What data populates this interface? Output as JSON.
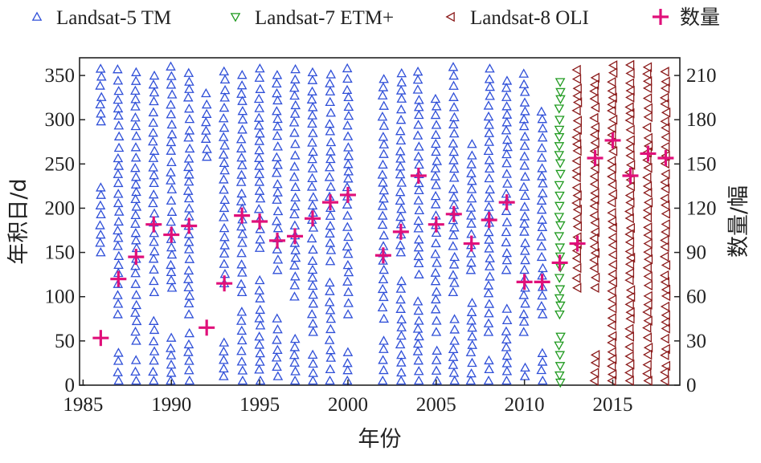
{
  "chart_data": {
    "type": "scatter",
    "xlabel": "年份",
    "ylabel": "年积日/d",
    "y2label": "数量/幅",
    "xlim": [
      1984.8,
      2018.8
    ],
    "ylim": [
      0,
      370
    ],
    "y2lim": [
      0,
      222
    ],
    "xticks": [
      1985,
      1990,
      1995,
      2000,
      2005,
      2010,
      2015
    ],
    "yticks": [
      0,
      50,
      100,
      150,
      200,
      250,
      300,
      350
    ],
    "y2ticks": [
      0,
      30,
      60,
      90,
      120,
      150,
      180,
      210
    ],
    "legend_position": "top",
    "legend": [
      {
        "label": "Landsat-5 TM",
        "marker": "triangle-up",
        "color": "#2f4fd8"
      },
      {
        "label": "Landsat-7 ETM+",
        "marker": "triangle-down",
        "color": "#1f9a1f"
      },
      {
        "label": "Landsat-8 OLI",
        "marker": "triangle-left",
        "color": "#8b1a1a"
      },
      {
        "label": "数量",
        "marker": "plus",
        "color": "#e0107a"
      }
    ],
    "series": [
      {
        "name": "Landsat-5 TM",
        "axis": "left",
        "marker": "triangle-up",
        "color": "#2f4fd8",
        "columns": [
          {
            "year": 1986,
            "ranges": [
              [
                150,
                225
              ],
              [
                298,
                362
              ]
            ]
          },
          {
            "year": 1987,
            "ranges": [
              [
                5,
                40
              ],
              [
                80,
                360
              ]
            ]
          },
          {
            "year": 1988,
            "ranges": [
              [
                5,
                30
              ],
              [
                50,
                362
              ]
            ]
          },
          {
            "year": 1989,
            "ranges": [
              [
                5,
                75
              ],
              [
                105,
                355
              ]
            ]
          },
          {
            "year": 1990,
            "ranges": [
              [
                5,
                60
              ],
              [
                110,
                362
              ]
            ]
          },
          {
            "year": 1991,
            "ranges": [
              [
                5,
                60
              ],
              [
                80,
                360
              ]
            ]
          },
          {
            "year": 1992,
            "ranges": [
              [
                258,
                332
              ]
            ]
          },
          {
            "year": 1993,
            "ranges": [
              [
                10,
                55
              ],
              [
                115,
                360
              ]
            ]
          },
          {
            "year": 1994,
            "ranges": [
              [
                5,
                85
              ],
              [
                105,
                362
              ]
            ]
          },
          {
            "year": 1995,
            "ranges": [
              [
                5,
                130
              ],
              [
                155,
                360
              ]
            ]
          },
          {
            "year": 1996,
            "ranges": [
              [
                10,
                85
              ],
              [
                130,
                362
              ]
            ]
          },
          {
            "year": 1997,
            "ranges": [
              [
                5,
                55
              ],
              [
                100,
                360
              ]
            ]
          },
          {
            "year": 1998,
            "ranges": [
              [
                5,
                40
              ],
              [
                60,
                355
              ]
            ]
          },
          {
            "year": 1999,
            "ranges": [
              [
                5,
                120
              ],
              [
                140,
                360
              ]
            ]
          },
          {
            "year": 2000,
            "ranges": [
              [
                5,
                45
              ],
              [
                80,
                362
              ]
            ]
          },
          {
            "year": 2002,
            "ranges": [
              [
                5,
                60
              ],
              [
                75,
                352
              ]
            ]
          },
          {
            "year": 2003,
            "ranges": [
              [
                5,
                120
              ],
              [
                150,
                362
              ]
            ]
          },
          {
            "year": 2004,
            "ranges": [
              [
                5,
                95
              ],
              [
                125,
                362
              ]
            ]
          },
          {
            "year": 2005,
            "ranges": [
              [
                5,
                40
              ],
              [
                60,
                330
              ]
            ]
          },
          {
            "year": 2006,
            "ranges": [
              [
                5,
                75
              ],
              [
                105,
                362
              ]
            ]
          },
          {
            "year": 2007,
            "ranges": [
              [
                5,
                100
              ],
              [
                130,
                278
              ]
            ]
          },
          {
            "year": 2008,
            "ranges": [
              [
                5,
                35
              ],
              [
                60,
                360
              ]
            ]
          },
          {
            "year": 2009,
            "ranges": [
              [
                5,
                90
              ],
              [
                130,
                350
              ]
            ]
          },
          {
            "year": 2010,
            "ranges": [
              [
                10,
                25
              ],
              [
                60,
                362
              ]
            ]
          },
          {
            "year": 2011,
            "ranges": [
              [
                5,
                40
              ],
              [
                80,
                310
              ]
            ]
          }
        ]
      },
      {
        "name": "Landsat-7 ETM+",
        "axis": "left",
        "marker": "triangle-down",
        "color": "#1f9a1f",
        "columns": [
          {
            "year": 2012,
            "ranges": [
              [
                3,
                60
              ],
              [
                80,
                345
              ]
            ]
          }
        ]
      },
      {
        "name": "Landsat-8 OLI",
        "axis": "left",
        "marker": "triangle-left",
        "color": "#8b1a1a",
        "columns": [
          {
            "year": 2013,
            "ranges": [
              [
                110,
                362
              ]
            ]
          },
          {
            "year": 2014,
            "ranges": [
              [
                5,
                45
              ],
              [
                110,
                355
              ]
            ]
          },
          {
            "year": 2015,
            "ranges": [
              [
                5,
                362
              ]
            ]
          },
          {
            "year": 2016,
            "ranges": [
              [
                5,
                362
              ]
            ]
          },
          {
            "year": 2017,
            "ranges": [
              [
                5,
                360
              ]
            ]
          },
          {
            "year": 2018,
            "ranges": [
              [
                5,
                362
              ]
            ]
          }
        ]
      },
      {
        "name": "数量",
        "axis": "right",
        "marker": "plus",
        "color": "#e0107a",
        "x": [
          1986,
          1987,
          1988,
          1989,
          1990,
          1991,
          1992,
          1993,
          1994,
          1995,
          1996,
          1997,
          1998,
          1999,
          2000,
          2002,
          2003,
          2004,
          2005,
          2006,
          2007,
          2008,
          2009,
          2010,
          2011,
          2012,
          2013,
          2014,
          2015,
          2016,
          2017,
          2018
        ],
        "y": [
          32,
          72,
          87,
          109,
          102,
          108,
          39,
          69,
          115,
          111,
          98,
          101,
          113,
          124,
          129,
          88,
          104,
          142,
          109,
          116,
          96,
          112,
          124,
          70,
          70,
          83,
          96,
          154,
          166,
          142,
          157,
          154
        ]
      }
    ]
  }
}
